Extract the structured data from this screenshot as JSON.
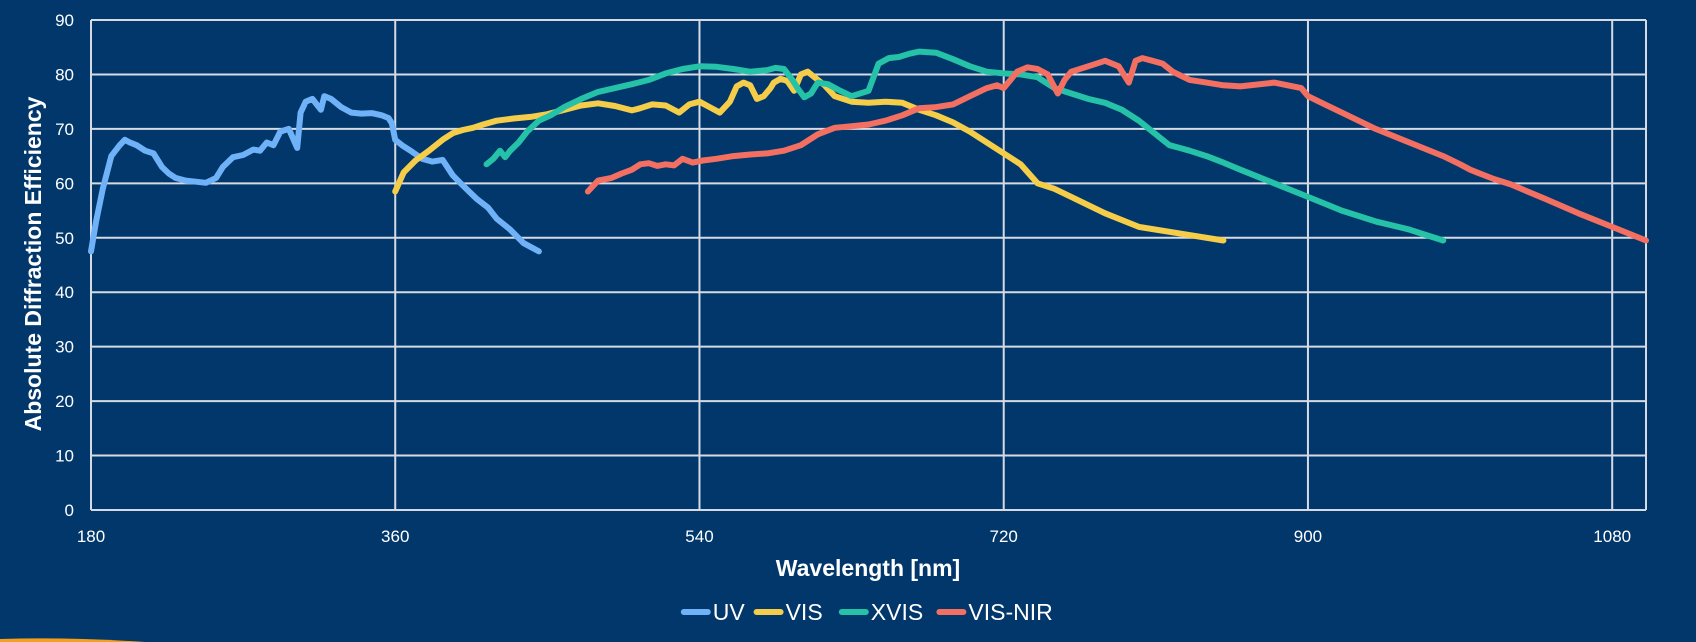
{
  "chart_data": {
    "type": "line",
    "title": "",
    "xlabel": "Wavelength [nm]",
    "ylabel": "Absolute Diffraction Efficiency",
    "xlim": [
      180,
      1100
    ],
    "ylim": [
      0,
      90
    ],
    "xticks": [
      180,
      360,
      540,
      720,
      900,
      1080
    ],
    "yticks": [
      0,
      10,
      20,
      30,
      40,
      50,
      60,
      70,
      80,
      90
    ],
    "grid": true,
    "legend_position": "bottom-center",
    "colors": {
      "background": "#02376b",
      "grid": "#d6dbe3",
      "text": "#ffffff"
    },
    "series": [
      {
        "name": "UV",
        "color": "#6fb2f7",
        "x": [
          180,
          183,
          187,
          192,
          197,
          200,
          203,
          207,
          212,
          217,
          222,
          226,
          230,
          236,
          242,
          248,
          254,
          258,
          264,
          270,
          276,
          280,
          284,
          288,
          292,
          297,
          302,
          304,
          307,
          311,
          316,
          318,
          322,
          328,
          334,
          340,
          346,
          352,
          356,
          358,
          360,
          364,
          370,
          376,
          382,
          388,
          394,
          398,
          402,
          408,
          415,
          420,
          428,
          436,
          445
        ],
        "y": [
          47.5,
          53,
          59,
          65,
          67,
          68,
          67.5,
          67,
          66,
          65.5,
          63,
          61.8,
          61,
          60.5,
          60.3,
          60.1,
          61,
          63,
          64.8,
          65.2,
          66.2,
          66,
          67.5,
          67,
          69.5,
          70,
          66.5,
          73,
          75,
          75.5,
          73.5,
          76,
          75.5,
          74,
          73,
          72.8,
          72.9,
          72.5,
          72,
          71,
          68,
          67,
          65.8,
          64.5,
          64,
          64.3,
          61.5,
          60.2,
          59,
          57.2,
          55.5,
          53.5,
          51.5,
          49,
          47.5
        ]
      },
      {
        "name": "VIS",
        "color": "#f5cd48",
        "x": [
          360,
          365,
          372,
          380,
          388,
          394,
          400,
          406,
          412,
          420,
          430,
          440,
          450,
          460,
          470,
          480,
          490,
          500,
          505,
          512,
          520,
          528,
          534,
          540,
          546,
          552,
          558,
          562,
          566,
          570,
          574,
          578,
          582,
          584,
          588,
          592,
          596,
          600,
          604,
          608,
          614,
          620,
          630,
          640,
          650,
          660,
          670,
          680,
          690,
          700,
          710,
          720,
          730,
          740,
          750,
          760,
          780,
          800,
          830,
          850
        ],
        "y": [
          58.5,
          62,
          64.2,
          66,
          68,
          69.2,
          69.8,
          70.2,
          70.8,
          71.5,
          71.9,
          72.2,
          72.7,
          73.5,
          74.3,
          74.7,
          74.2,
          73.4,
          73.8,
          74.5,
          74.3,
          73,
          74.5,
          75,
          74,
          73,
          75,
          77.8,
          78.5,
          78,
          75.5,
          76,
          77.5,
          78.5,
          79.2,
          78.8,
          77,
          80,
          80.5,
          79.5,
          78,
          76,
          75,
          74.8,
          75,
          74.8,
          73.5,
          72.5,
          71.2,
          69.5,
          67.5,
          65.5,
          63.5,
          60,
          59,
          57.5,
          54.5,
          52,
          50.5,
          49.5
        ]
      },
      {
        "name": "XVIS",
        "color": "#25c2a7",
        "x": [
          414,
          418,
          422,
          425,
          428,
          433,
          438,
          445,
          452,
          460,
          470,
          480,
          490,
          500,
          510,
          520,
          530,
          540,
          550,
          560,
          570,
          580,
          585,
          590,
          595,
          598,
          602,
          606,
          610,
          616,
          622,
          630,
          640,
          646,
          652,
          658,
          664,
          670,
          680,
          690,
          700,
          710,
          720,
          730,
          740,
          750,
          760,
          770,
          780,
          790,
          800,
          810,
          818,
          824,
          830,
          840,
          850,
          860,
          880,
          900,
          920,
          940,
          960,
          980
        ],
        "y": [
          63.5,
          64.5,
          66,
          64.8,
          66,
          67.5,
          69.5,
          71.5,
          72.5,
          74,
          75.5,
          76.8,
          77.5,
          78.2,
          79,
          80.2,
          81,
          81.5,
          81.4,
          81,
          80.5,
          80.8,
          81.2,
          81,
          79,
          77.5,
          75.8,
          76.5,
          78.5,
          78.2,
          77.2,
          76,
          77,
          82,
          83,
          83.2,
          83.8,
          84.2,
          84,
          82.8,
          81.5,
          80.5,
          80.2,
          80,
          79.5,
          77.5,
          76.5,
          75.5,
          74.8,
          73.5,
          71.5,
          69,
          67,
          66.5,
          66,
          65,
          63.8,
          62.5,
          60,
          57.5,
          55,
          53,
          51.5,
          49.5
        ]
      },
      {
        "name": "VIS-NIR",
        "color": "#f36f61",
        "x": [
          474,
          480,
          488,
          494,
          500,
          505,
          510,
          515,
          520,
          525,
          530,
          536,
          542,
          550,
          560,
          570,
          580,
          590,
          600,
          610,
          620,
          630,
          640,
          650,
          660,
          670,
          680,
          690,
          700,
          710,
          716,
          720,
          724,
          728,
          734,
          740,
          746,
          752,
          756,
          760,
          770,
          780,
          788,
          794,
          798,
          802,
          808,
          814,
          820,
          830,
          840,
          850,
          860,
          880,
          896,
          900,
          910,
          920,
          940,
          960,
          980,
          990,
          996,
          1000,
          1010,
          1020,
          1040,
          1060,
          1080,
          1100
        ],
        "y": [
          58.5,
          60.5,
          61,
          61.8,
          62.5,
          63.5,
          63.7,
          63.2,
          63.5,
          63.3,
          64.5,
          63.8,
          64.2,
          64.5,
          65,
          65.3,
          65.5,
          66,
          67,
          69,
          70.2,
          70.5,
          70.8,
          71.5,
          72.5,
          73.8,
          74,
          74.5,
          76,
          77.5,
          78,
          77.5,
          79,
          80.5,
          81.3,
          81,
          80,
          76.5,
          79,
          80.5,
          81.5,
          82.5,
          81.5,
          78.5,
          82.5,
          83,
          82.5,
          82,
          80.5,
          79,
          78.5,
          78,
          77.8,
          78.5,
          77.5,
          76,
          74.5,
          73,
          70,
          67.5,
          65,
          63.5,
          62.5,
          62,
          60.8,
          59.8,
          57.2,
          54.5,
          52,
          49.5
        ]
      }
    ]
  }
}
